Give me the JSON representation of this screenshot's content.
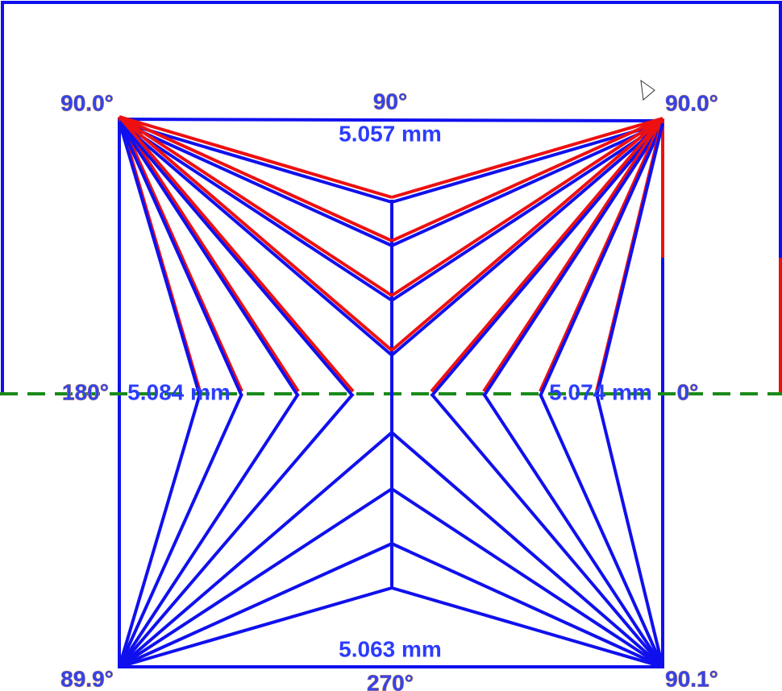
{
  "corner_angles": {
    "top_left": "90.0°",
    "top_right": "90.0°",
    "bottom_left": "89.9°",
    "bottom_right": "90.1°"
  },
  "direction_labels": {
    "top": "90°",
    "left": "180°",
    "right": "0°",
    "bottom": "270°"
  },
  "side_lengths": {
    "top": "5.057 mm",
    "left": "5.084 mm",
    "right": "5.074 mm",
    "bottom": "5.063 mm"
  }
}
